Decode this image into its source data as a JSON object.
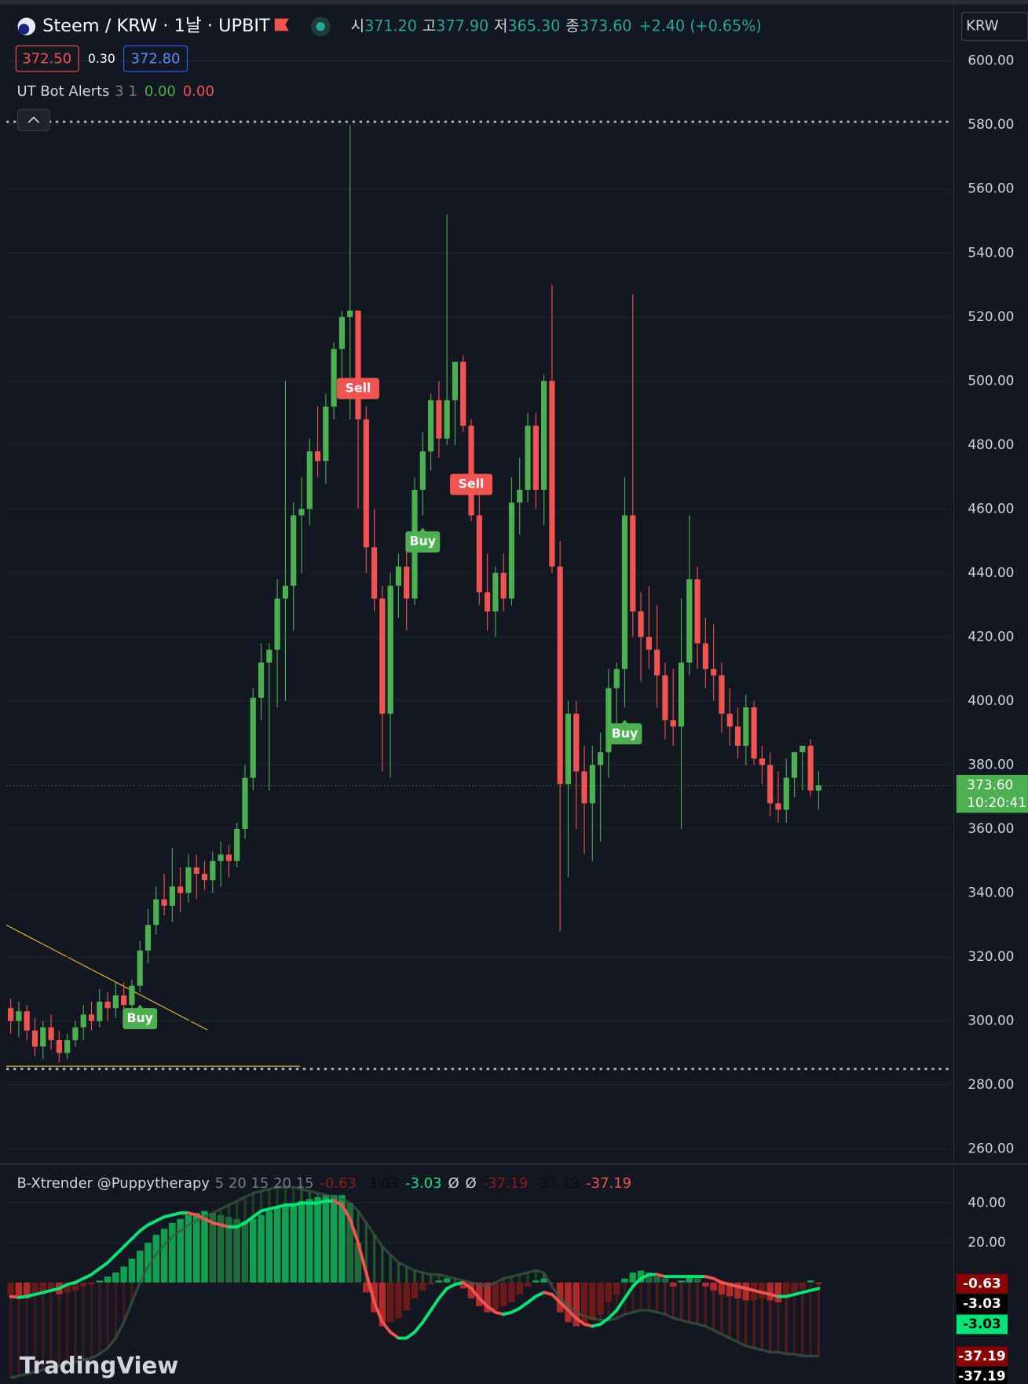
{
  "chart_data": [
    {
      "type": "candlestick",
      "title": "Steem / KRW · 1날 · UPBIT",
      "ohlc_legend": {
        "labels": [
          "시",
          "고",
          "저",
          "종"
        ],
        "values": [
          "371.20",
          "377.90",
          "365.30",
          "373.60"
        ],
        "change": "+2.40 (+0.65%)"
      },
      "quote": [
        "372.50",
        "0.30",
        "372.80"
      ],
      "indicator": {
        "name": "UT Bot Alerts",
        "params": "3 1",
        "values": [
          "0.00",
          "0.00"
        ]
      },
      "currency": "KRW",
      "last_price": {
        "value": 373.6,
        "label": "373.60"
      },
      "countdown": "10:20:41",
      "ylim": [
        255.5,
        616.3
      ],
      "yticks": [
        {
          "value": 600,
          "label": "600.00"
        },
        {
          "value": 580,
          "label": "580.00"
        },
        {
          "value": 560,
          "label": "560.00"
        },
        {
          "value": 540,
          "label": "540.00"
        },
        {
          "value": 520,
          "label": "520.00"
        },
        {
          "value": 500,
          "label": "500.00"
        },
        {
          "value": 480,
          "label": "480.00"
        },
        {
          "value": 460,
          "label": "460.00"
        },
        {
          "value": 440,
          "label": "440.00"
        },
        {
          "value": 420,
          "label": "420.00"
        },
        {
          "value": 400,
          "label": "400.00"
        },
        {
          "value": 380,
          "label": "380.00"
        },
        {
          "value": 360,
          "label": "360.00"
        },
        {
          "value": 340,
          "label": "340.00"
        },
        {
          "value": 320,
          "label": "320.00"
        },
        {
          "value": 300,
          "label": "300.00"
        },
        {
          "value": 280,
          "label": "280.00"
        },
        {
          "value": 260,
          "label": "260.00"
        }
      ],
      "grid": true,
      "up_color": "#4caf50",
      "down_color": "#f05350",
      "levels": [
        581,
        285
      ],
      "candles": [
        [
          304,
          307,
          296,
          300
        ],
        [
          300,
          306,
          295,
          303
        ],
        [
          303,
          305,
          294,
          297
        ],
        [
          297,
          301,
          289,
          292
        ],
        [
          292,
          300,
          288,
          298
        ],
        [
          298,
          302,
          291,
          294
        ],
        [
          294,
          297,
          287,
          290
        ],
        [
          290,
          296,
          288,
          294
        ],
        [
          294,
          300,
          292,
          298
        ],
        [
          298,
          305,
          294,
          302
        ],
        [
          302,
          306,
          297,
          300
        ],
        [
          300,
          310,
          298,
          306
        ],
        [
          306,
          309,
          300,
          304
        ],
        [
          304,
          312,
          301,
          308
        ],
        [
          308,
          312,
          303,
          305
        ],
        [
          305,
          313,
          302,
          311
        ],
        [
          311,
          325,
          309,
          322
        ],
        [
          322,
          335,
          318,
          330
        ],
        [
          330,
          342,
          327,
          338
        ],
        [
          338,
          346,
          333,
          336
        ],
        [
          336,
          354,
          331,
          342
        ],
        [
          342,
          348,
          334,
          340
        ],
        [
          340,
          352,
          337,
          348
        ],
        [
          348,
          352,
          338,
          346
        ],
        [
          346,
          350,
          341,
          344
        ],
        [
          344,
          353,
          340,
          350
        ],
        [
          350,
          356,
          342,
          352
        ],
        [
          352,
          355,
          345,
          350
        ],
        [
          350,
          362,
          348,
          360
        ],
        [
          360,
          380,
          357,
          376
        ],
        [
          376,
          404,
          372,
          401
        ],
        [
          401,
          418,
          394,
          412
        ],
        [
          412,
          418,
          372,
          416
        ],
        [
          416,
          438,
          398,
          432
        ],
        [
          432,
          500,
          400,
          436
        ],
        [
          436,
          462,
          422,
          458
        ],
        [
          458,
          470,
          440,
          460
        ],
        [
          460,
          482,
          455,
          478
        ],
        [
          478,
          492,
          470,
          475
        ],
        [
          475,
          496,
          468,
          492
        ],
        [
          492,
          512,
          488,
          510
        ],
        [
          510,
          522,
          500,
          520
        ],
        [
          520,
          580,
          488,
          522
        ],
        [
          522,
          522,
          460,
          488
        ],
        [
          488,
          492,
          440,
          448
        ],
        [
          448,
          460,
          428,
          432
        ],
        [
          432,
          436,
          378,
          396
        ],
        [
          396,
          440,
          376,
          436
        ],
        [
          436,
          446,
          426,
          442
        ],
        [
          442,
          448,
          422,
          432
        ],
        [
          432,
          470,
          430,
          466
        ],
        [
          466,
          484,
          458,
          478
        ],
        [
          478,
          496,
          472,
          494
        ],
        [
          494,
          500,
          476,
          482
        ],
        [
          482,
          552,
          480,
          494
        ],
        [
          494,
          506,
          480,
          506
        ],
        [
          506,
          508,
          484,
          486
        ],
        [
          486,
          488,
          456,
          458
        ],
        [
          458,
          470,
          430,
          434
        ],
        [
          434,
          446,
          422,
          428
        ],
        [
          428,
          442,
          420,
          440
        ],
        [
          440,
          446,
          428,
          432
        ],
        [
          432,
          470,
          430,
          462
        ],
        [
          462,
          476,
          452,
          466
        ],
        [
          466,
          490,
          462,
          486
        ],
        [
          486,
          490,
          460,
          466
        ],
        [
          466,
          502,
          455,
          500
        ],
        [
          500,
          530,
          440,
          442
        ],
        [
          442,
          450,
          328,
          374
        ],
        [
          374,
          400,
          345,
          396
        ],
        [
          396,
          400,
          360,
          378
        ],
        [
          378,
          386,
          352,
          368
        ],
        [
          368,
          386,
          350,
          380
        ],
        [
          380,
          390,
          356,
          384
        ],
        [
          384,
          410,
          376,
          404
        ],
        [
          404,
          412,
          388,
          410
        ],
        [
          410,
          470,
          398,
          458
        ],
        [
          458,
          527,
          420,
          428
        ],
        [
          428,
          434,
          406,
          420
        ],
        [
          420,
          436,
          410,
          416
        ],
        [
          416,
          430,
          398,
          408
        ],
        [
          408,
          412,
          388,
          394
        ],
        [
          394,
          410,
          386,
          392
        ],
        [
          392,
          432,
          360,
          412
        ],
        [
          412,
          458,
          408,
          438
        ],
        [
          438,
          442,
          410,
          418
        ],
        [
          418,
          426,
          404,
          410
        ],
        [
          410,
          424,
          400,
          408
        ],
        [
          408,
          412,
          390,
          396
        ],
        [
          396,
          404,
          386,
          392
        ],
        [
          392,
          398,
          382,
          386
        ],
        [
          386,
          402,
          380,
          398
        ],
        [
          398,
          400,
          380,
          382
        ],
        [
          382,
          386,
          374,
          380
        ],
        [
          380,
          384,
          364,
          368
        ],
        [
          368,
          378,
          362,
          366
        ],
        [
          366,
          382,
          362,
          376
        ],
        [
          376,
          384,
          370,
          384
        ],
        [
          384,
          386,
          372,
          386
        ],
        [
          386,
          388,
          370,
          372
        ],
        [
          372,
          378,
          366,
          373.6
        ]
      ],
      "signals": [
        {
          "text": "Buy",
          "bar": 16,
          "color": "#4caf50"
        },
        {
          "text": "Sell",
          "bar": 43,
          "color": "#f05350"
        },
        {
          "text": "Buy",
          "bar": 51,
          "color": "#4caf50"
        },
        {
          "text": "Sell",
          "bar": 57,
          "color": "#f05350"
        },
        {
          "text": "Buy",
          "bar": 76,
          "color": "#4caf50"
        }
      ],
      "watermark": "TradingView"
    },
    {
      "type": "xtrender",
      "title": "B-Xtrender @Puppytherapy",
      "params": "5 20 15 20 15",
      "legend": [
        {
          "text": "-0.63",
          "color": "#8b1a1a"
        },
        {
          "text": "-3.03",
          "color": "#0b0b0b"
        },
        {
          "text": "-3.03",
          "color": "#00e676"
        },
        {
          "text": "Ø",
          "color": "#d1d4dc"
        },
        {
          "text": "Ø",
          "color": "#d1d4dc"
        },
        {
          "text": "-37.19",
          "color": "#8b1a1a"
        },
        {
          "text": "-37.19",
          "color": "#0b0b0b"
        },
        {
          "text": "-37.19",
          "color": "#f05350"
        }
      ],
      "ylim": [
        -51.1,
        59.1
      ],
      "yticks": [
        {
          "value": 40,
          "label": "40.00"
        },
        {
          "value": 20,
          "label": "20.00"
        }
      ],
      "short": [
        -6,
        -7,
        -8,
        -7,
        -6,
        -5,
        -6,
        -5,
        -4,
        -2,
        -1,
        1,
        3,
        5,
        8,
        12,
        16,
        20,
        24,
        27,
        30,
        32,
        34,
        35,
        36,
        35,
        34,
        33,
        32,
        31,
        32,
        34,
        36,
        38,
        39,
        40,
        41,
        42,
        43,
        44,
        44,
        44,
        40,
        20,
        -5,
        -15,
        -22,
        -20,
        -18,
        -14,
        -8,
        -4,
        -1,
        1,
        2,
        0,
        -3,
        -8,
        -12,
        -15,
        -14,
        -12,
        -10,
        -6,
        -2,
        1,
        2,
        0,
        -15,
        -20,
        -22,
        -21,
        -19,
        -16,
        -10,
        -6,
        2,
        5,
        6,
        5,
        3,
        2,
        -2,
        1,
        3,
        2,
        -2,
        -4,
        -6,
        -7,
        -8,
        -9,
        -9,
        -8,
        -9,
        -10,
        -8,
        -5,
        -3,
        1,
        -0.63
      ],
      "signal": [
        -7,
        -7.5,
        -7,
        -6,
        -5,
        -4,
        -3,
        -1,
        0,
        2,
        4,
        7,
        10,
        14,
        18,
        22,
        26,
        29,
        31,
        33,
        34,
        35,
        35,
        34,
        32,
        30,
        29,
        28,
        28,
        30,
        33,
        36,
        37,
        38,
        39,
        39,
        40,
        40,
        40,
        41,
        41,
        39,
        32,
        20,
        5,
        -10,
        -20,
        -25,
        -28,
        -28,
        -25,
        -20,
        -14,
        -8,
        -3,
        -1,
        0,
        -3,
        -8,
        -12,
        -15,
        -16,
        -15,
        -13,
        -10,
        -7,
        -5,
        -6,
        -10,
        -14,
        -18,
        -21,
        -22,
        -21,
        -18,
        -14,
        -8,
        -2,
        2,
        4,
        4,
        3,
        3,
        3,
        3,
        3,
        3,
        2,
        0,
        -1,
        -2,
        -3,
        -4,
        -5,
        -6,
        -7,
        -7,
        -6,
        -5,
        -4,
        -3.03
      ],
      "long": [
        -48,
        -47,
        -46,
        -45,
        -44,
        -43,
        -42,
        -41,
        -40,
        -39,
        -38,
        -36,
        -33,
        -28,
        -20,
        -10,
        0,
        8,
        14,
        19,
        23,
        26,
        29,
        31,
        33,
        35,
        37,
        39,
        41,
        43,
        45,
        46,
        47,
        48,
        48,
        48,
        47,
        46,
        45,
        44,
        43,
        42,
        40,
        36,
        30,
        24,
        18,
        14,
        10,
        8,
        6,
        5,
        4,
        4,
        3,
        2,
        1,
        0,
        -1,
        -2,
        0,
        2,
        3,
        4,
        5,
        6,
        5,
        -2,
        -8,
        -12,
        -15,
        -17,
        -18,
        -19,
        -19,
        -18,
        -16,
        -15,
        -14,
        -14,
        -15,
        -16,
        -18,
        -19,
        -20,
        -21,
        -22,
        -24,
        -26,
        -28,
        -30,
        -32,
        -33,
        -34,
        -35,
        -35,
        -36,
        -36,
        -37,
        -37,
        -37.19
      ],
      "up_color": "#00e676",
      "down_color": "#f05350",
      "axis_labels": [
        {
          "value": -0.63,
          "label": "-0.63",
          "color": "#8b0000",
          "text_color": "#ffffff"
        },
        {
          "value": -3.03,
          "label": "-3.03",
          "color": "#000000",
          "text_color": "#ffffff"
        },
        {
          "value": -3.03,
          "label": "-3.03",
          "color": "#00e676",
          "text_color": "#000000"
        },
        {
          "value": -37.19,
          "label": "-37.19",
          "color": "#8b0000",
          "text_color": "#ffffff"
        },
        {
          "value": -37.19,
          "label": "-37.19",
          "color": "#000000",
          "text_color": "#ffffff"
        }
      ]
    }
  ]
}
